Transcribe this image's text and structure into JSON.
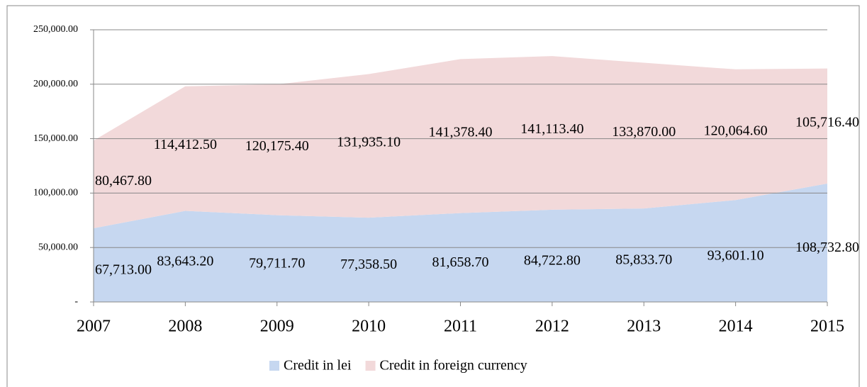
{
  "chart_data": {
    "type": "stacked_area",
    "categories": [
      "2007",
      "2008",
      "2009",
      "2010",
      "2011",
      "2012",
      "2013",
      "2014",
      "2015"
    ],
    "series": [
      {
        "name": "Credit in lei",
        "color": "#c6d7f0",
        "values": [
          67713.0,
          83643.2,
          79711.7,
          77358.5,
          81658.7,
          84722.8,
          85833.7,
          93601.1,
          108732.8
        ],
        "value_labels": [
          "67,713.00",
          "83,643.20",
          "79,711.70",
          "77,358.50",
          "81,658.70",
          "84,722.80",
          "85,833.70",
          "93,601.10",
          "108,732.80"
        ]
      },
      {
        "name": "Credit in foreign currency",
        "color": "#f2d9da",
        "values": [
          80467.8,
          114412.5,
          120175.4,
          131935.1,
          141378.4,
          141113.4,
          133870.0,
          120064.6,
          105716.4
        ],
        "value_labels": [
          "80,467.80",
          "114,412.50",
          "120,175.40",
          "131,935.10",
          "141,378.40",
          "141,113.40",
          "133,870.00",
          "120,064.60",
          "105,716.40"
        ]
      }
    ],
    "ylim": [
      0,
      250000
    ],
    "yticks": [
      {
        "value": 0,
        "label": "-"
      },
      {
        "value": 50000,
        "label": "50,000.00"
      },
      {
        "value": 100000,
        "label": "100,000.00"
      },
      {
        "value": 150000,
        "label": "150,000.00"
      },
      {
        "value": 200000,
        "label": "200,000.00"
      },
      {
        "value": 250000,
        "label": "250,000.00"
      }
    ],
    "grid": true,
    "legend": "bottom"
  }
}
